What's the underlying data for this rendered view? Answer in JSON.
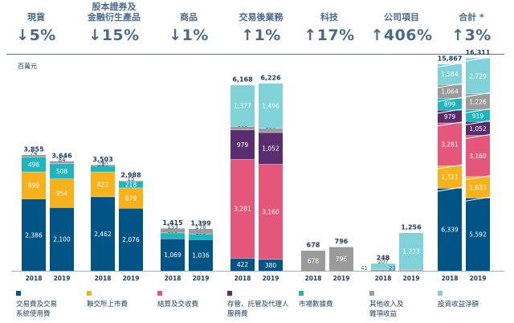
{
  "unit_label": "百萬元",
  "segments": [
    {
      "name": "現貨",
      "change": "↓5%"
    },
    {
      "name": "股本證券及\n金融衍生產品",
      "change": "↓15%"
    },
    {
      "name": "商品",
      "change": "↓1%"
    },
    {
      "name": "交易後業務",
      "change": "↑1%"
    },
    {
      "name": "科技",
      "change": "↑17%"
    },
    {
      "name": "公司項目",
      "change": "↑406%"
    },
    {
      "name": "合計 *",
      "change": "↑3%"
    }
  ],
  "legend": [
    {
      "label": "交易費及交易\n系統使用費",
      "color": "#005587"
    },
    {
      "label": "聯交所上市費",
      "color": "#f7b11a"
    },
    {
      "label": "結算及交收費",
      "color": "#e4577a"
    },
    {
      "label": "存管、託管及代理人\n服務費",
      "color": "#5a2d6e"
    },
    {
      "label": "市場數據費",
      "color": "#1fb5bc"
    },
    {
      "label": "其他收入及\n雜項收益",
      "color": "#9b9b9b"
    },
    {
      "label": "投資收益淨額",
      "color": "#7fd3d8"
    }
  ],
  "chart_data": {
    "type": "bar",
    "stacked": true,
    "unit": "百萬元",
    "x_labels": [
      "2018",
      "2019"
    ],
    "groups": [
      {
        "segment": "現貨",
        "bars": [
          {
            "year": "2018",
            "total": "3,855",
            "stack": [
              {
                "component": "交易費及交易系統使用費",
                "value": 2386
              },
              {
                "component": "聯交所上市費",
                "value": 899
              },
              {
                "component": "市場數據費",
                "value": 496
              },
              {
                "component": "其他收入及雜項收益",
                "value": 74
              }
            ]
          },
          {
            "year": "2019",
            "total": "3,646",
            "stack": [
              {
                "component": "交易費及交易系統使用費",
                "value": 2100
              },
              {
                "component": "聯交所上市費",
                "value": 954
              },
              {
                "component": "市場數據費",
                "value": 508
              },
              {
                "component": "其他收入及雜項收益",
                "value": 84
              }
            ]
          }
        ]
      },
      {
        "segment": "股本證券及金融衍生產品",
        "bars": [
          {
            "year": "2018",
            "total": "3,503",
            "stack": [
              {
                "component": "交易費及交易系統使用費",
                "value": 2462
              },
              {
                "component": "聯交所上市費",
                "value": 822
              },
              {
                "component": "市場數據費",
                "value": 210
              },
              {
                "component": "其他收入及雜項收益",
                "value": 9
              }
            ]
          },
          {
            "year": "2019",
            "total": "2,988",
            "stack": [
              {
                "component": "交易費及交易系統使用費",
                "value": 2076
              },
              {
                "component": "聯交所上市費",
                "value": 679
              },
              {
                "component": "市場數據費",
                "value": 218
              },
              {
                "component": "其他收入及雜項收益",
                "value": 15
              }
            ]
          }
        ]
      },
      {
        "segment": "商品",
        "bars": [
          {
            "year": "2018",
            "total": "1,415",
            "stack": [
              {
                "component": "交易費及交易系統使用費",
                "value": 1069
              },
              {
                "component": "市場數據費",
                "value": 193
              },
              {
                "component": "其他收入及雜項收益",
                "value": 153
              }
            ]
          },
          {
            "year": "2019",
            "total": "1,399",
            "stack": [
              {
                "component": "交易費及交易系統使用費",
                "value": 1036
              },
              {
                "component": "市場數據費",
                "value": 193
              },
              {
                "component": "其他收入及雜項收益",
                "value": 170
              }
            ]
          }
        ]
      },
      {
        "segment": "交易後業務",
        "bars": [
          {
            "year": "2018",
            "total": "6,168",
            "stack": [
              {
                "component": "交易費及交易系統使用費",
                "value": 422
              },
              {
                "component": "結算及交收費",
                "value": 3281
              },
              {
                "component": "存管、託管及代理人服務費",
                "value": 979
              },
              {
                "component": "其他收入及雜項收益",
                "value": 109
              },
              {
                "component": "投資收益淨額",
                "value": 1377
              }
            ]
          },
          {
            "year": "2019",
            "total": "6,226",
            "stack": [
              {
                "component": "交易費及交易系統使用費",
                "value": 380
              },
              {
                "component": "結算及交收費",
                "value": 3160
              },
              {
                "component": "存管、託管及代理人服務費",
                "value": 1052
              },
              {
                "component": "其他收入及雜項收益",
                "value": 138
              },
              {
                "component": "投資收益淨額",
                "value": 1496
              }
            ]
          }
        ]
      },
      {
        "segment": "科技",
        "bars": [
          {
            "year": "2018",
            "total": "678",
            "stack": [
              {
                "component": "其他收入及雜項收益",
                "value": 678
              }
            ]
          },
          {
            "year": "2019",
            "total": "796",
            "stack": [
              {
                "component": "其他收入及雜項收益",
                "value": 796
              }
            ]
          }
        ]
      },
      {
        "segment": "公司項目",
        "bars": [
          {
            "year": "2018",
            "total": "248",
            "stack": [
              {
                "component": "其他收入及雜項收益",
                "value": 41
              },
              {
                "component": "投資收益淨額",
                "value": 207
              }
            ]
          },
          {
            "year": "2019",
            "total": "1,256",
            "stack": [
              {
                "component": "其他收入及雜項收益",
                "value": 23
              },
              {
                "component": "投資收益淨額",
                "value": 1233
              }
            ]
          }
        ]
      },
      {
        "segment": "合計 *",
        "bars": [
          {
            "year": "2018",
            "total": "15,867",
            "stack": [
              {
                "component": "交易費及交易系統使用費",
                "value": 6339
              },
              {
                "component": "聯交所上市費",
                "value": 1721
              },
              {
                "component": "結算及交收費",
                "value": 3281
              },
              {
                "component": "存管、託管及代理人服務費",
                "value": 979
              },
              {
                "component": "市場數據費",
                "value": 899
              },
              {
                "component": "其他收入及雜項收益",
                "value": 1064
              },
              {
                "component": "投資收益淨額",
                "value": 1584
              }
            ]
          },
          {
            "year": "2019",
            "total": "16,311",
            "stack": [
              {
                "component": "交易費及交易系統使用費",
                "value": 5592
              },
              {
                "component": "聯交所上市費",
                "value": 1633
              },
              {
                "component": "結算及交收費",
                "value": 3160
              },
              {
                "component": "存管、託管及代理人服務費",
                "value": 1052
              },
              {
                "component": "市場數據費",
                "value": 919
              },
              {
                "component": "其他收入及雜項收益",
                "value": 1226
              },
              {
                "component": "投資收益淨額",
                "value": 2729
              }
            ]
          }
        ]
      }
    ]
  }
}
